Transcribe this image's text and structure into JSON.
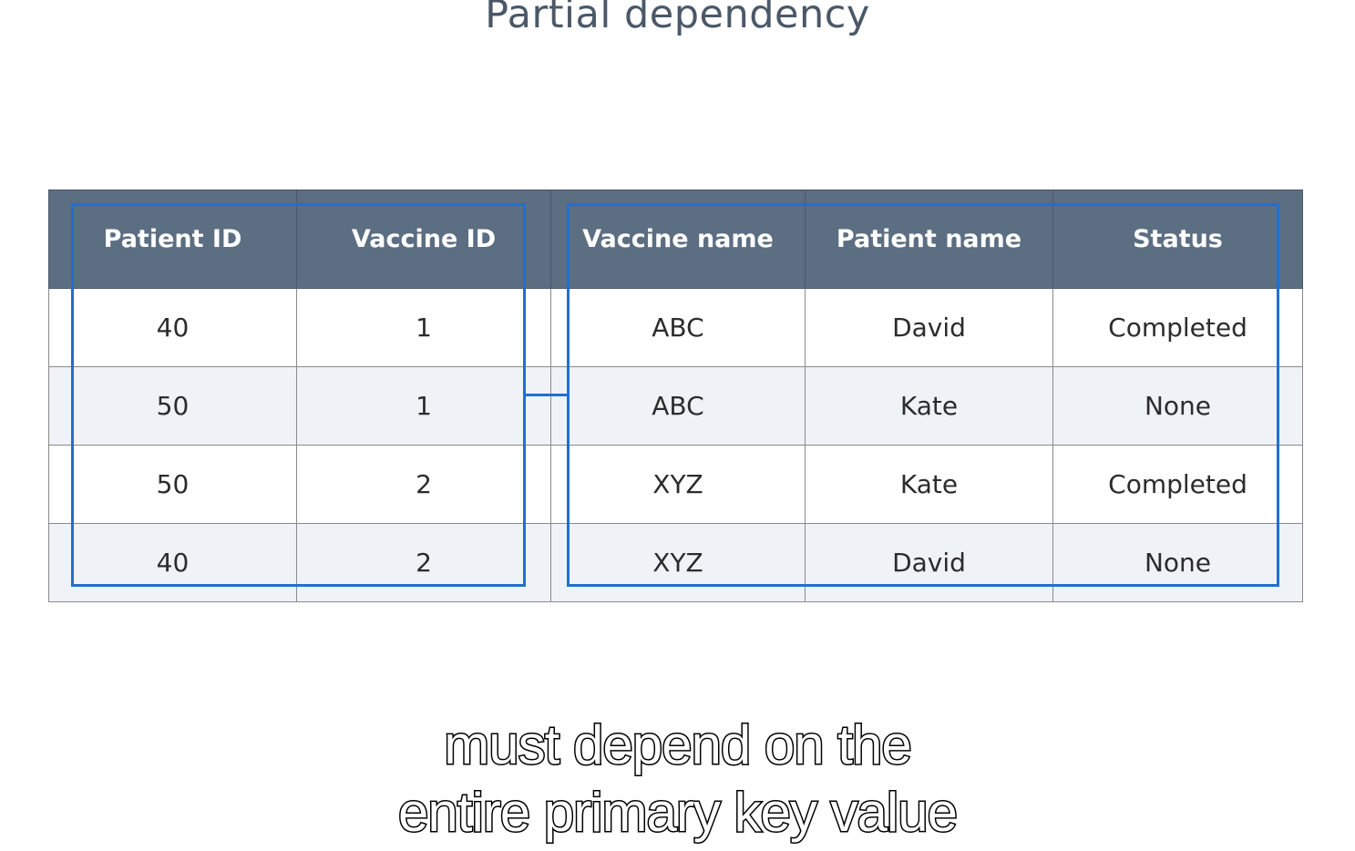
{
  "title": "Partial dependency",
  "table": {
    "headers": [
      "Patient ID",
      "Vaccine ID",
      "Vaccine name",
      "Patient name",
      "Status"
    ],
    "rows": [
      [
        "40",
        "1",
        "ABC",
        "David",
        "Completed"
      ],
      [
        "50",
        "1",
        "ABC",
        "Kate",
        "None"
      ],
      [
        "50",
        "2",
        "XYZ",
        "Kate",
        "Completed"
      ],
      [
        "40",
        "2",
        "XYZ",
        "David",
        "None"
      ]
    ]
  },
  "highlight_color": "#1f6fd4",
  "header_color": "#5c6e82",
  "caption": {
    "line1": "must depend on the",
    "line2": "entire primary key value"
  }
}
